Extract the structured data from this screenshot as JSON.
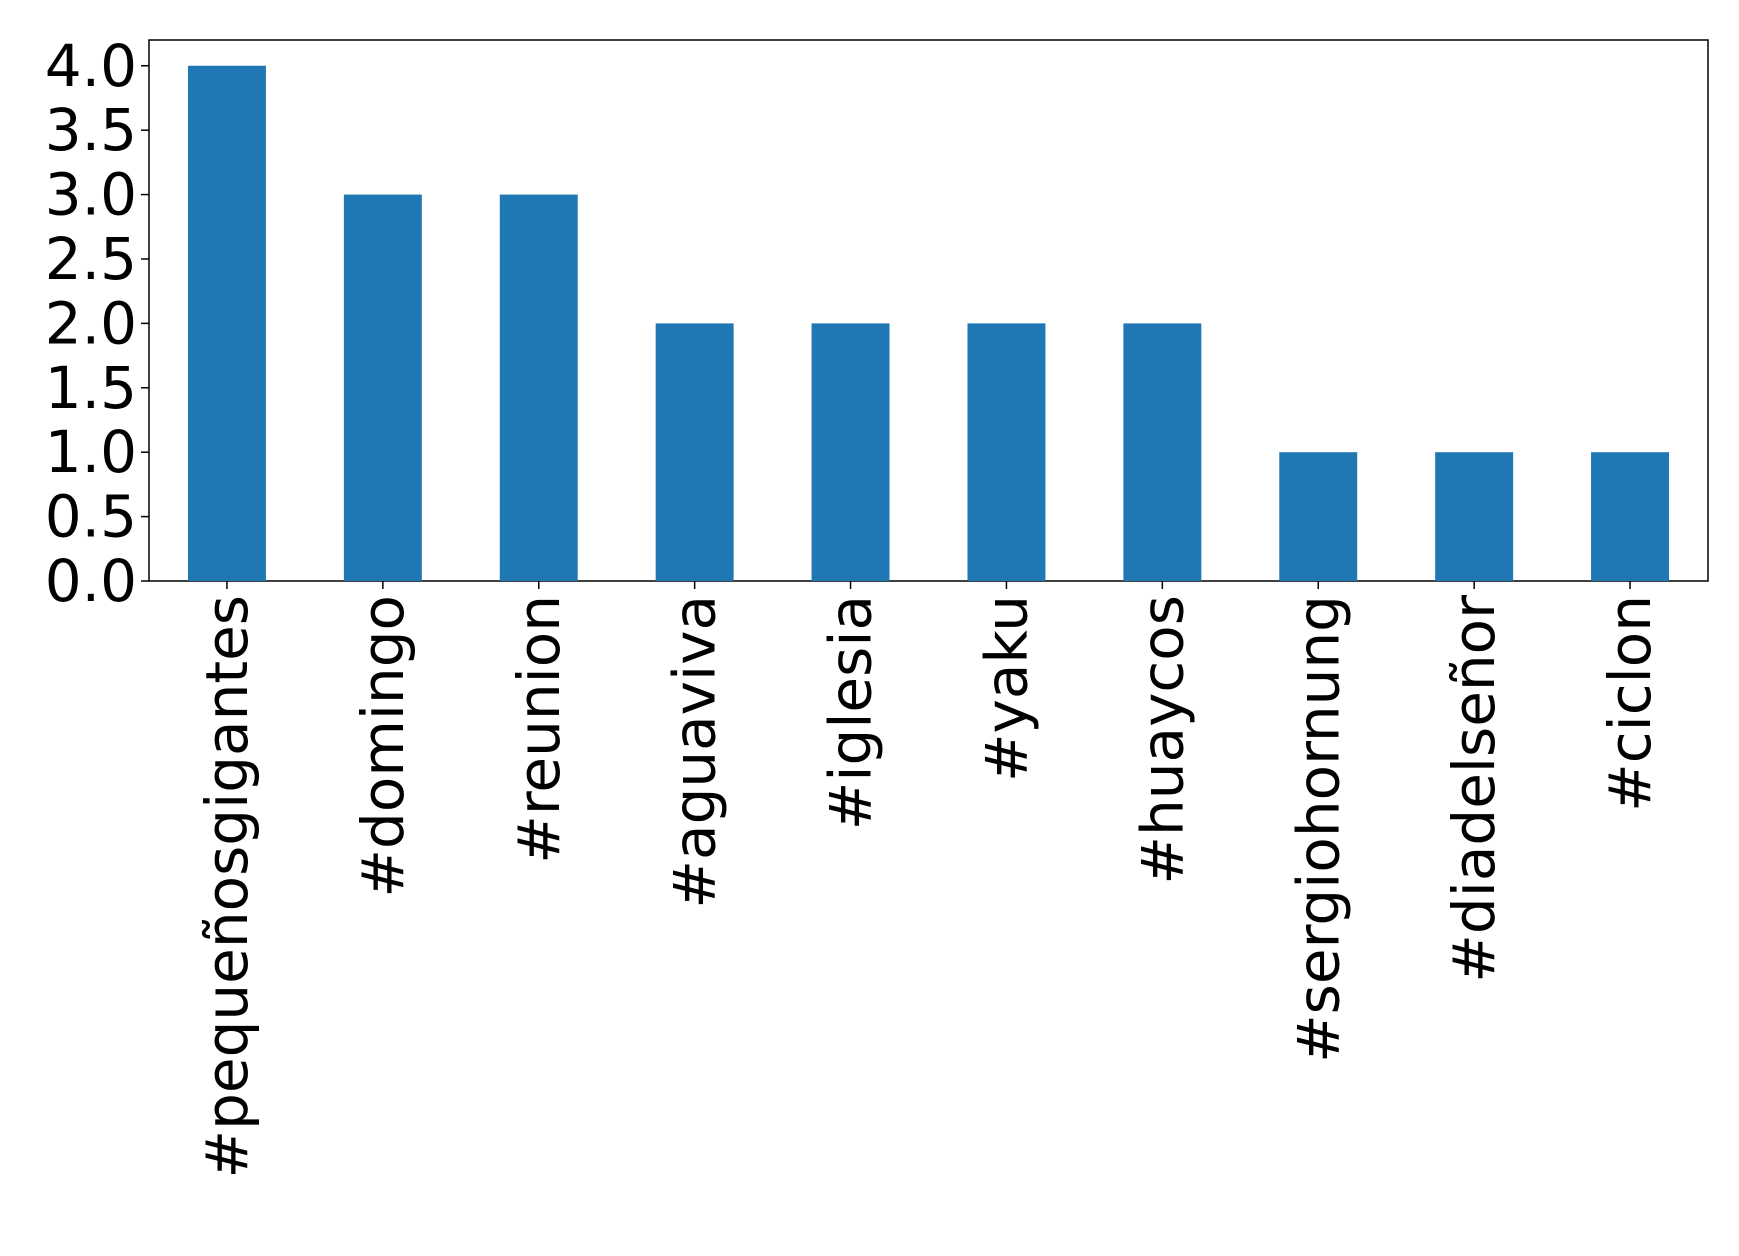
{
  "chart_data": {
    "type": "bar",
    "categories": [
      "#pequeñosgigantes",
      "#domingo",
      "#reunion",
      "#aguaviva",
      "#iglesia",
      "#yaku",
      "#huaycos",
      "#sergiohornung",
      "#diadelseñor",
      "#ciclon"
    ],
    "values": [
      4,
      3,
      3,
      2,
      2,
      2,
      2,
      1,
      1,
      1
    ],
    "color": "#1f77b4",
    "ylim": [
      0,
      4.2
    ],
    "yticks": [
      {
        "value": 0,
        "label": "0.0"
      },
      0.5,
      {
        "value": 1,
        "label": "1.0"
      },
      1.5,
      {
        "value": 2,
        "label": "2.0"
      },
      2.5,
      {
        "value": 3,
        "label": "3.0"
      },
      3.5,
      {
        "value": 4,
        "label": "4.0"
      }
    ],
    "grid": false
  }
}
